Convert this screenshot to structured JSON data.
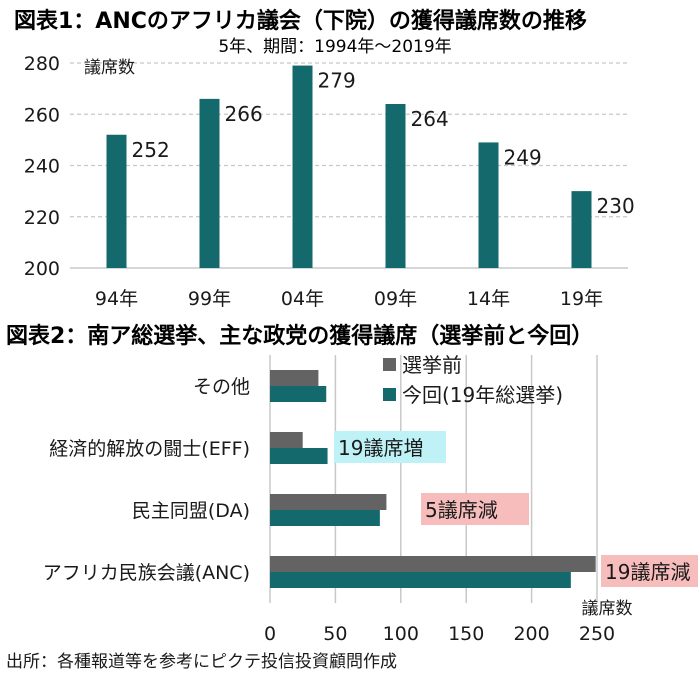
{
  "colors": {
    "teal": "#13696b",
    "gray": "#636363",
    "grid": "#c8c8c8",
    "cyan_box": "#bff2f7",
    "pink_box": "#f7bcbc"
  },
  "chart_data": [
    {
      "type": "bar",
      "title": "図表1：ANCのアフリカ議会（下院）の獲得議席数の推移",
      "subtitle": "5年、期間：1994年〜2019年",
      "ylabel": "議席数",
      "xlabel": "",
      "categories": [
        "94年",
        "99年",
        "04年",
        "09年",
        "14年",
        "19年"
      ],
      "values": [
        252,
        266,
        279,
        264,
        249,
        230
      ],
      "data_labels": [
        "252",
        "266",
        "279",
        "264",
        "249",
        "230"
      ],
      "ylim": [
        200,
        280
      ],
      "yticks": [
        "200",
        "220",
        "240",
        "260",
        "280"
      ],
      "grid": true
    },
    {
      "type": "bar",
      "orientation": "horizontal",
      "title": "図表2：南ア総選挙、主な政党の獲得議席（選挙前と今回）",
      "xlabel": "議席数",
      "categories": [
        "その他",
        "経済的解放の闘士(EFF)",
        "民主同盟(DA)",
        "アフリカ民族会議(ANC)"
      ],
      "series": [
        {
          "name": "選挙前",
          "values": [
            37,
            25,
            89,
            249
          ]
        },
        {
          "name": "今回(19年総選挙)",
          "values": [
            43,
            44,
            84,
            230
          ]
        }
      ],
      "xlim": [
        0,
        250
      ],
      "xticks": [
        "0",
        "50",
        "100",
        "150",
        "200",
        "250"
      ],
      "legend": "top-right",
      "grid": true,
      "annotations": [
        {
          "category": "経済的解放の闘士(EFF)",
          "text": "19議席増"
        },
        {
          "category": "民主同盟(DA)",
          "text": "5議席減"
        },
        {
          "category": "アフリカ民族会議(ANC)",
          "text": "19議席減"
        }
      ]
    }
  ],
  "footer": {
    "source": "出所：各種報道等を参考にピクテ投信投資顧問作成"
  }
}
